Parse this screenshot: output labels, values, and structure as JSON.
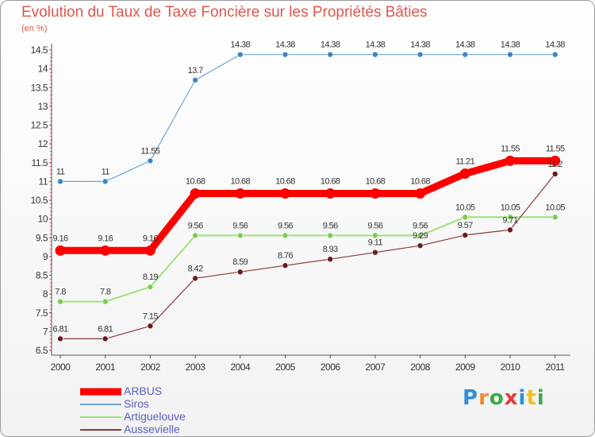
{
  "title": "Evolution du Taux de Taxe Foncière sur les Propriétés Bâties",
  "unit": "(en %)",
  "logo": {
    "text": "Proxiti",
    "letter_colors": [
      "#2f8fd8",
      "#f08a2a",
      "#3aaa4a",
      "#e83a3a",
      "#2f8fd8",
      "#f0c020",
      "#3aaa4a"
    ]
  },
  "chart_data": {
    "type": "line",
    "title": "Evolution du Taux de Taxe Foncière sur les Propriétés Bâties",
    "ylabel": "(en %)",
    "xlabel": "",
    "x": [
      "2000",
      "2001",
      "2002",
      "2003",
      "2004",
      "2005",
      "2006",
      "2007",
      "2008",
      "2009",
      "2010",
      "2011"
    ],
    "ylim": [
      6.5,
      14.5
    ],
    "yticks": [
      "6.5",
      "7",
      "7.5",
      "8",
      "8.5",
      "9",
      "9.5",
      "10",
      "10.5",
      "11",
      "11.5",
      "12",
      "12.5",
      "13",
      "13.5",
      "14",
      "14.5"
    ],
    "grid": false,
    "series": [
      {
        "name": "ARBUS",
        "color": "#ff0000",
        "marker": "#ff0000",
        "width": 9,
        "r": 6.5,
        "values": [
          9.16,
          9.16,
          9.16,
          10.68,
          10.68,
          10.68,
          10.68,
          10.68,
          10.68,
          11.21,
          11.55,
          11.55
        ],
        "labels": [
          "9.16",
          "9.16",
          "9.16",
          "10.68",
          "10.68",
          "10.68",
          "10.68",
          "10.68",
          "10.68",
          "11.21",
          "11.55",
          "11.55"
        ]
      },
      {
        "name": "Siros",
        "color": "#6fa6d6",
        "marker": "#3d85c6",
        "width": 1.2,
        "r": 3.5,
        "values": [
          11,
          11,
          11.55,
          13.7,
          14.38,
          14.38,
          14.38,
          14.38,
          14.38,
          14.38,
          14.38,
          14.38
        ],
        "labels": [
          "11",
          "11",
          "11.55",
          "13.7",
          "14.38",
          "14.38",
          "14.38",
          "14.38",
          "14.38",
          "14.38",
          "14.38",
          "14.38"
        ]
      },
      {
        "name": "Artiguelouve",
        "color": "#9ee07a",
        "marker": "#7acc50",
        "width": 2,
        "r": 3.5,
        "values": [
          7.8,
          7.8,
          8.19,
          9.56,
          9.56,
          9.56,
          9.56,
          9.56,
          9.56,
          10.05,
          10.05,
          10.05
        ],
        "labels": [
          "7.8",
          "7.8",
          "8.19",
          "9.56",
          "9.56",
          "9.56",
          "9.56",
          "9.56",
          "9.56",
          "10.05",
          "10.05",
          "10.05"
        ]
      },
      {
        "name": "Aussevielle",
        "color": "#8b3a3a",
        "marker": "#6b1a1a",
        "width": 1.2,
        "r": 3.5,
        "values": [
          6.81,
          6.81,
          7.15,
          8.42,
          8.59,
          8.76,
          8.93,
          9.11,
          9.29,
          9.57,
          9.71,
          11.2
        ],
        "labels": [
          "6.81",
          "6.81",
          "7.15",
          "8.42",
          "8.59",
          "8.76",
          "8.93",
          "9.11",
          "9.29",
          "9.57",
          "9.71",
          "11.2"
        ]
      }
    ],
    "legend_position": "bottom-left"
  },
  "legend": [
    {
      "name": "ARBUS",
      "color": "#ff0000",
      "thickness": 9
    },
    {
      "name": "Siros",
      "color": "#6fa6d6",
      "thickness": 2
    },
    {
      "name": "Artiguelouve",
      "color": "#9ee07a",
      "thickness": 2
    },
    {
      "name": "Aussevielle",
      "color": "#8b3a3a",
      "thickness": 2
    }
  ]
}
